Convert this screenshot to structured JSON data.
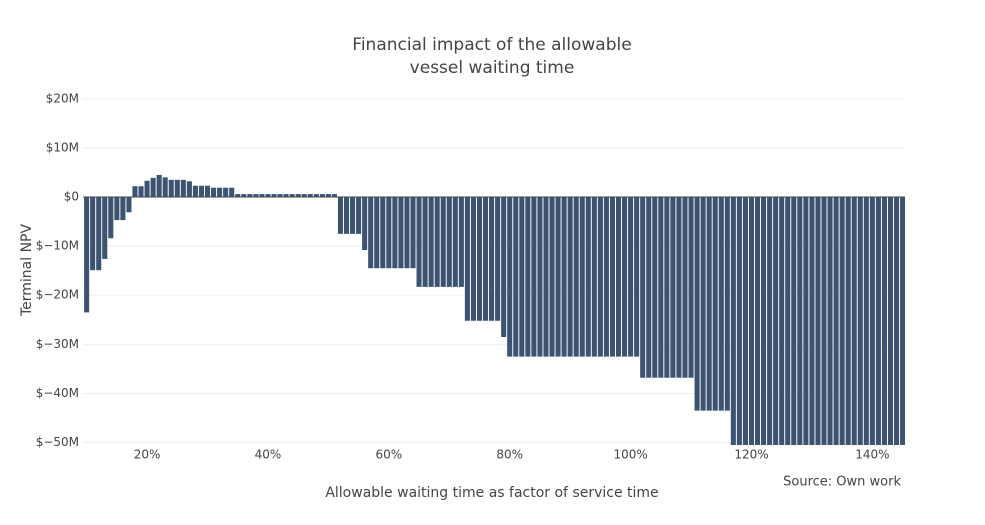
{
  "chart_data": {
    "type": "bar",
    "title": "Financial impact of the allowable vessel waiting time",
    "xlabel": "Allowable waiting time as factor of service time",
    "ylabel": "Terminal NPV",
    "annotation": "Source: Own work",
    "color": "#3c5371",
    "grid": true,
    "x": [
      10,
      11,
      12,
      13,
      14,
      15,
      16,
      17,
      18,
      19,
      20,
      21,
      22,
      23,
      24,
      25,
      26,
      27,
      28,
      29,
      30,
      31,
      32,
      33,
      34,
      35,
      36,
      37,
      38,
      39,
      40,
      41,
      42,
      43,
      44,
      45,
      46,
      47,
      48,
      49,
      50,
      51,
      52,
      53,
      54,
      55,
      56,
      57,
      58,
      59,
      60,
      61,
      62,
      63,
      64,
      65,
      66,
      67,
      68,
      69,
      70,
      71,
      72,
      73,
      74,
      75,
      76,
      77,
      78,
      79,
      80,
      81,
      82,
      83,
      84,
      85,
      86,
      87,
      88,
      89,
      90,
      91,
      92,
      93,
      94,
      95,
      96,
      97,
      98,
      99,
      100,
      101,
      102,
      103,
      104,
      105,
      106,
      107,
      108,
      109,
      110,
      111,
      112,
      113,
      114,
      115,
      116,
      117,
      118,
      119,
      120,
      121,
      122,
      123,
      124,
      125,
      126,
      127,
      128,
      129,
      130,
      131,
      132,
      133,
      134,
      135,
      136,
      137,
      138,
      139,
      140,
      141,
      142,
      143,
      144,
      145
    ],
    "values": [
      -23.5,
      -14.9,
      -14.9,
      -12.6,
      -8.4,
      -4.7,
      -4.7,
      -3.1,
      2.2,
      2.2,
      3.3,
      3.9,
      4.5,
      4.0,
      3.5,
      3.5,
      3.5,
      3.2,
      2.3,
      2.3,
      2.3,
      1.9,
      1.9,
      1.9,
      1.9,
      0.6,
      0.6,
      0.6,
      0.6,
      0.6,
      0.6,
      0.6,
      0.6,
      0.6,
      0.6,
      0.6,
      0.6,
      0.6,
      0.6,
      0.6,
      0.6,
      0.6,
      -7.5,
      -7.5,
      -7.5,
      -7.5,
      -10.8,
      -14.5,
      -14.5,
      -14.5,
      -14.5,
      -14.5,
      -14.5,
      -14.5,
      -14.5,
      -18.3,
      -18.3,
      -18.3,
      -18.3,
      -18.3,
      -18.3,
      -18.3,
      -18.3,
      -25.2,
      -25.2,
      -25.2,
      -25.2,
      -25.2,
      -25.2,
      -28.5,
      -32.5,
      -32.5,
      -32.5,
      -32.5,
      -32.5,
      -32.5,
      -32.5,
      -32.5,
      -32.5,
      -32.5,
      -32.5,
      -32.5,
      -32.5,
      -32.5,
      -32.5,
      -32.5,
      -32.5,
      -32.5,
      -32.5,
      -32.5,
      -32.5,
      -32.5,
      -36.8,
      -36.8,
      -36.8,
      -36.8,
      -36.8,
      -36.8,
      -36.8,
      -36.8,
      -36.8,
      -43.5,
      -43.5,
      -43.5,
      -43.5,
      -43.5,
      -43.5,
      -52,
      -52,
      -52,
      -52,
      -52,
      -52,
      -52,
      -52,
      -52,
      -52,
      -52,
      -52,
      -52,
      -52,
      -52,
      -52,
      -52,
      -52,
      -52,
      -52,
      -52,
      -52,
      -52,
      -52,
      -52,
      -52,
      -52,
      -52,
      -52
    ],
    "xlim": [
      9.4,
      145.4
    ],
    "xticks": [
      {
        "value": 20,
        "label": "20%"
      },
      {
        "value": 40,
        "label": "40%"
      },
      {
        "value": 60,
        "label": "60%"
      },
      {
        "value": 80,
        "label": "80%"
      },
      {
        "value": 100,
        "label": "100%"
      },
      {
        "value": 120,
        "label": "120%"
      },
      {
        "value": 140,
        "label": "140%"
      }
    ],
    "ylim": [
      -50.5,
      22
    ],
    "yticks": [
      {
        "value": -50,
        "label": "$−50M"
      },
      {
        "value": -40,
        "label": "$−40M"
      },
      {
        "value": -30,
        "label": "$−30M"
      },
      {
        "value": -20,
        "label": "$−20M"
      },
      {
        "value": -10,
        "label": "$−10M"
      },
      {
        "value": 0,
        "label": "$0"
      },
      {
        "value": 10,
        "label": "$10M"
      },
      {
        "value": 20,
        "label": "$20M"
      }
    ]
  }
}
